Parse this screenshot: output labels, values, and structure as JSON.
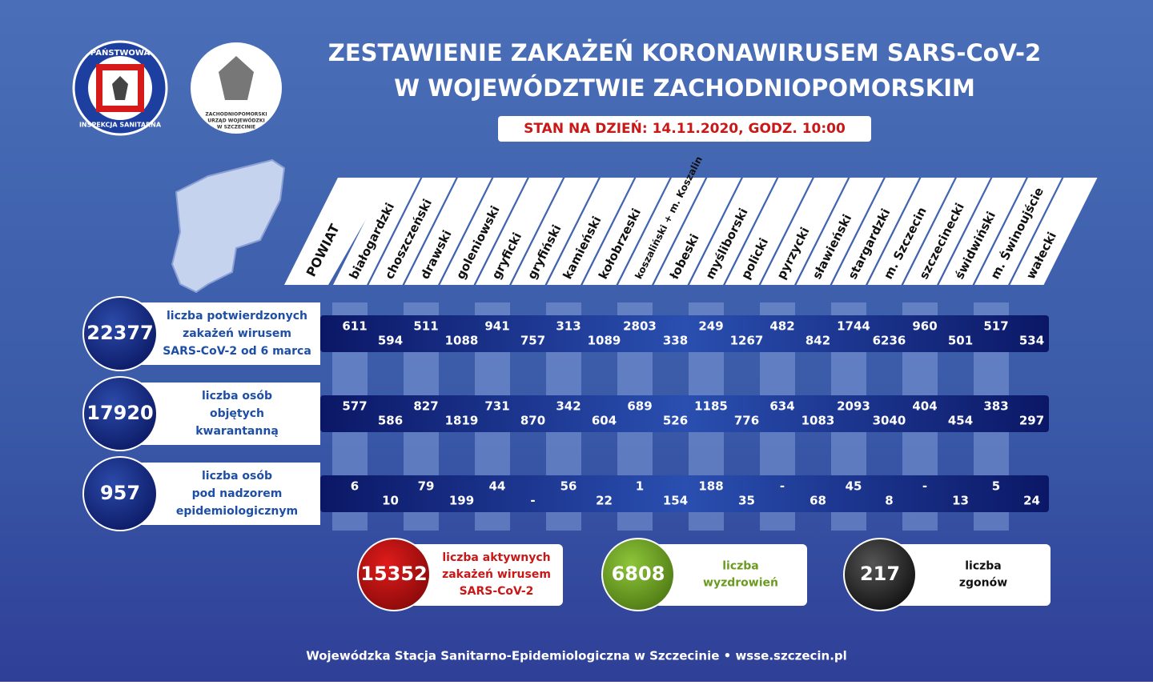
{
  "header": {
    "title_line1": "ZESTAWIENIE ZAKAŻEŃ KORONAWIRUSEM SARS-CoV-2",
    "title_line2": "W WOJEWÓDZTWIE ZACHODNIOPOMORSKIM",
    "date": "STAN NA DZIEŃ: 14.11.2020, GODZ. 10:00"
  },
  "logos": {
    "sanepid_top": "PAŃSTWOWA",
    "sanepid_bottom": "INSPEKCJA SANITARNA",
    "urzad": [
      "ZACHODNIOPOMORSKI",
      "URZĄD WOJEWÓDZKI",
      "W SZCZECINIE"
    ]
  },
  "table": {
    "column_header": "POWIAT",
    "columns": [
      "białogardzki",
      "choszczeński",
      "drawski",
      "goleniowski",
      "gryficki",
      "gryfiński",
      "kamieński",
      "kołobrzeski",
      "koszaliński + m. Koszalin",
      "łobeski",
      "myśliborski",
      "policki",
      "pyrzycki",
      "sławieński",
      "stargardzki",
      "m. Szczecin",
      "szczecinecki",
      "świdwiński",
      "m. Świnoujście",
      "wałecki"
    ],
    "rows": [
      {
        "total": "22377",
        "label": [
          "liczba potwierdzonych",
          "zakażeń wirusem",
          "SARS-CoV-2 od 6 marca"
        ],
        "values": [
          "611",
          "594",
          "511",
          "1088",
          "941",
          "757",
          "313",
          "1089",
          "2803",
          "338",
          "249",
          "1267",
          "482",
          "842",
          "1744",
          "6236",
          "960",
          "501",
          "517",
          "534"
        ]
      },
      {
        "total": "17920",
        "label": [
          "liczba osób",
          "objętych",
          "kwarantanną"
        ],
        "values": [
          "577",
          "586",
          "827",
          "1819",
          "731",
          "870",
          "342",
          "604",
          "689",
          "526",
          "1185",
          "776",
          "634",
          "1083",
          "2093",
          "3040",
          "404",
          "454",
          "383",
          "297"
        ]
      },
      {
        "total": "957",
        "label": [
          "liczba osób",
          "pod nadzorem",
          "epidemiologicznym"
        ],
        "values": [
          "6",
          "10",
          "79",
          "199",
          "44",
          "-",
          "56",
          "22",
          "1",
          "154",
          "188",
          "35",
          "-",
          "68",
          "45",
          "8",
          "-",
          "13",
          "5",
          "24"
        ]
      }
    ]
  },
  "summary": [
    {
      "value": "15352",
      "label": [
        "liczba aktywnych",
        "zakażeń wirusem",
        "SARS-CoV-2"
      ]
    },
    {
      "value": "6808",
      "label": [
        "liczba",
        "wyzdrowień"
      ]
    },
    {
      "value": "217",
      "label": [
        "liczba",
        "zgonów"
      ]
    }
  ],
  "footer": "Wojewódzka Stacja Sanitarno-Epidemiologiczna w Szczecinie  •  wsse.szczecin.pl"
}
